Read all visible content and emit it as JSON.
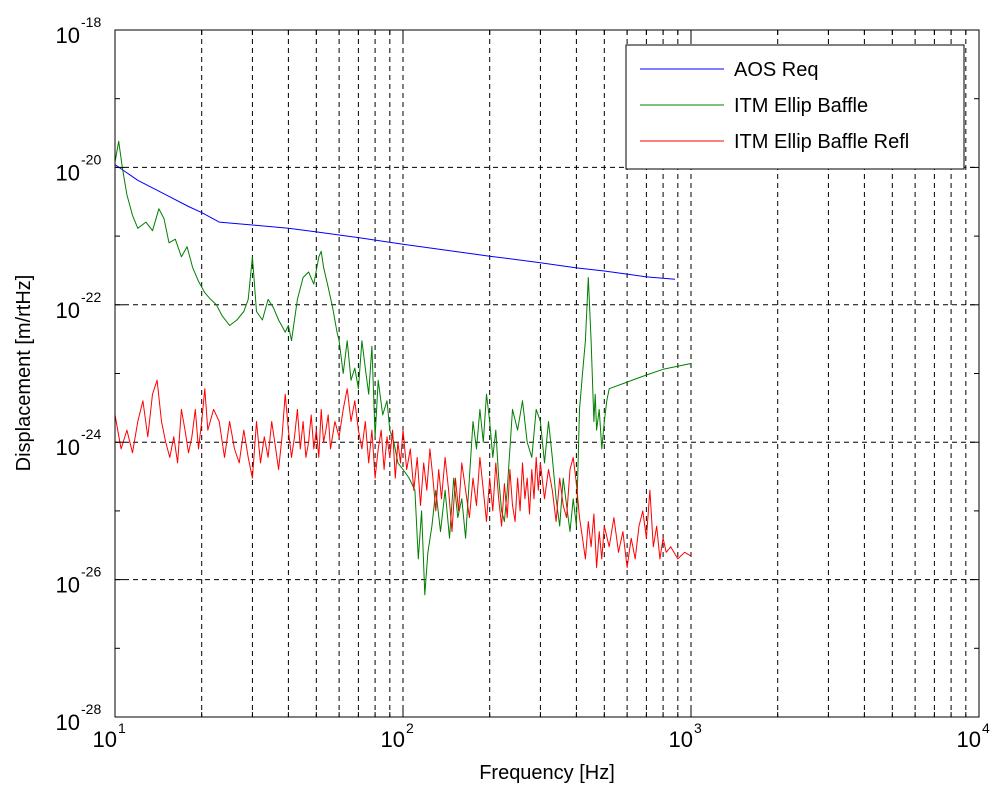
{
  "chart_data": {
    "type": "line",
    "xscale": "log",
    "yscale": "log",
    "xlim": [
      10,
      10000
    ],
    "ylim": [
      1e-28,
      1e-18
    ],
    "grid": true,
    "legend_position": "top-right",
    "xlabel": "Frequency [Hz]",
    "ylabel": "Displacement [m/rtHz]",
    "x_ticks": [
      {
        "base": "10",
        "exp": "1"
      },
      {
        "base": "10",
        "exp": "2"
      },
      {
        "base": "10",
        "exp": "3"
      },
      {
        "base": "10",
        "exp": "4"
      }
    ],
    "y_ticks": [
      {
        "base": "10",
        "exp": "-28"
      },
      {
        "base": "10",
        "exp": "-26"
      },
      {
        "base": "10",
        "exp": "-24"
      },
      {
        "base": "10",
        "exp": "-22"
      },
      {
        "base": "10",
        "exp": "-20"
      },
      {
        "base": "10",
        "exp": "-18"
      }
    ],
    "series": [
      {
        "name": "AOS Req",
        "color": "#0000ff",
        "points": [
          [
            10,
            1.1e-20
          ],
          [
            12,
            6.5e-21
          ],
          [
            15,
            4e-21
          ],
          [
            18,
            2.7e-21
          ],
          [
            20,
            2.2e-21
          ],
          [
            23,
            1.6e-21
          ],
          [
            30,
            1.45e-21
          ],
          [
            40,
            1.3e-21
          ],
          [
            50,
            1.15e-21
          ],
          [
            70,
            9.5e-22
          ],
          [
            100,
            7.6e-22
          ],
          [
            150,
            6e-22
          ],
          [
            200,
            5.1e-22
          ],
          [
            300,
            4.1e-22
          ],
          [
            400,
            3.45e-22
          ],
          [
            500,
            3.1e-22
          ],
          [
            600,
            2.8e-22
          ],
          [
            700,
            2.55e-22
          ],
          [
            880,
            2.35e-22
          ]
        ]
      },
      {
        "name": "ITM Ellip Baffle",
        "color": "#007f00",
        "points": [
          [
            10,
            1.2e-20
          ],
          [
            10.3,
            2.4e-20
          ],
          [
            10.6,
            1e-20
          ],
          [
            11,
            4e-21
          ],
          [
            11.5,
            2e-21
          ],
          [
            12,
            1.3e-21
          ],
          [
            12.8,
            1.6e-21
          ],
          [
            13.5,
            1.2e-21
          ],
          [
            14.2,
            2.5e-21
          ],
          [
            14.8,
            1.8e-21
          ],
          [
            15.4,
            8e-22
          ],
          [
            16.2,
            9e-22
          ],
          [
            17,
            5e-22
          ],
          [
            17.8,
            7e-22
          ],
          [
            18.6,
            3.5e-22
          ],
          [
            19.5,
            2.2e-22
          ],
          [
            20.5,
            1.5e-22
          ],
          [
            21.5,
            1.2e-22
          ],
          [
            22.5,
            1e-22
          ],
          [
            23.5,
            7e-23
          ],
          [
            25,
            5e-23
          ],
          [
            26.5,
            6e-23
          ],
          [
            28,
            8e-23
          ],
          [
            29,
            1.2e-22
          ],
          [
            30,
            5e-22
          ],
          [
            31,
            8e-23
          ],
          [
            32.5,
            6e-23
          ],
          [
            34,
            1.2e-22
          ],
          [
            35.5,
            9e-23
          ],
          [
            37,
            6e-23
          ],
          [
            39,
            4e-23
          ],
          [
            40,
            5e-23
          ],
          [
            41,
            3e-23
          ],
          [
            43,
            1.2e-22
          ],
          [
            45,
            2.5e-22
          ],
          [
            47,
            3e-22
          ],
          [
            49,
            2e-22
          ],
          [
            51,
            5e-22
          ],
          [
            52,
            6e-22
          ],
          [
            53,
            3.5e-22
          ],
          [
            55,
            1.8e-22
          ],
          [
            57,
            9e-23
          ],
          [
            59,
            4e-23
          ],
          [
            60,
            3e-23
          ],
          [
            62,
            1e-23
          ],
          [
            64,
            3e-23
          ],
          [
            66,
            8e-24
          ],
          [
            68,
            1.2e-23
          ],
          [
            70,
            6e-24
          ],
          [
            72,
            3e-23
          ],
          [
            74,
            1.2e-23
          ],
          [
            76,
            5e-24
          ],
          [
            78,
            2.5e-23
          ],
          [
            80,
            1.2e-24
          ],
          [
            82,
            8e-24
          ],
          [
            85,
            2.5e-24
          ],
          [
            88,
            4e-24
          ],
          [
            90,
            1.5e-24
          ],
          [
            93,
            1e-24
          ],
          [
            96,
            5e-25
          ],
          [
            100,
            4e-25
          ],
          [
            105,
            3e-25
          ],
          [
            110,
            2e-25
          ],
          [
            113,
            2e-26
          ],
          [
            116,
            1e-25
          ],
          [
            119,
            6e-27
          ],
          [
            122,
            2.5e-26
          ],
          [
            126,
            6e-26
          ],
          [
            130,
            2e-25
          ],
          [
            135,
            5e-26
          ],
          [
            140,
            2e-25
          ],
          [
            145,
            4e-26
          ],
          [
            150,
            3e-25
          ],
          [
            155,
            8e-26
          ],
          [
            160,
            1.5e-25
          ],
          [
            165,
            4e-26
          ],
          [
            170,
            3e-25
          ],
          [
            175,
            2e-24
          ],
          [
            180,
            8e-25
          ],
          [
            185,
            3e-24
          ],
          [
            190,
            1e-24
          ],
          [
            195,
            5e-24
          ],
          [
            200,
            2e-24
          ],
          [
            205,
            6e-25
          ],
          [
            210,
            1.5e-24
          ],
          [
            215,
            3e-25
          ],
          [
            220,
            1e-25
          ],
          [
            225,
            7e-26
          ],
          [
            230,
            2e-25
          ],
          [
            240,
            3e-24
          ],
          [
            250,
            1.5e-24
          ],
          [
            260,
            4e-24
          ],
          [
            270,
            1e-24
          ],
          [
            280,
            6e-25
          ],
          [
            290,
            3e-24
          ],
          [
            300,
            2e-24
          ],
          [
            310,
            5e-25
          ],
          [
            320,
            2e-24
          ],
          [
            330,
            6e-25
          ],
          [
            340,
            1.5e-25
          ],
          [
            350,
            6e-26
          ],
          [
            360,
            3e-25
          ],
          [
            370,
            1.2e-25
          ],
          [
            380,
            5e-26
          ],
          [
            390,
            1.5e-25
          ],
          [
            400,
            6e-26
          ],
          [
            410,
            3e-24
          ],
          [
            420,
            1e-23
          ],
          [
            430,
            3e-23
          ],
          [
            440,
            2.5e-22
          ],
          [
            450,
            3e-23
          ],
          [
            460,
            2e-24
          ],
          [
            465,
            5e-24
          ],
          [
            470,
            1.5e-24
          ],
          [
            480,
            3e-24
          ],
          [
            490,
            8e-25
          ],
          [
            500,
            2e-24
          ],
          [
            510,
            4e-24
          ],
          [
            520,
            6e-24
          ],
          [
            600,
            7.5e-24
          ],
          [
            700,
            9.5e-24
          ],
          [
            800,
            1.15e-23
          ],
          [
            1000,
            1.4e-23
          ]
        ]
      },
      {
        "name": "ITM Ellip Baffle Refl",
        "color": "#ff0000",
        "points": [
          [
            10,
            2.5e-24
          ],
          [
            10.5,
            8e-25
          ],
          [
            11,
            1.5e-24
          ],
          [
            11.5,
            7e-25
          ],
          [
            12,
            2e-24
          ],
          [
            12.5,
            4e-24
          ],
          [
            13,
            1.2e-24
          ],
          [
            13.5,
            5e-24
          ],
          [
            14,
            8e-24
          ],
          [
            14.5,
            2e-24
          ],
          [
            15,
            1e-24
          ],
          [
            15.5,
            6e-25
          ],
          [
            16,
            1.2e-24
          ],
          [
            16.5,
            5e-25
          ],
          [
            17,
            3e-24
          ],
          [
            17.5,
            1.5e-24
          ],
          [
            18,
            7e-25
          ],
          [
            18.5,
            1.2e-24
          ],
          [
            19,
            3e-24
          ],
          [
            19.5,
            8e-25
          ],
          [
            20,
            2e-24
          ],
          [
            20.5,
            6e-24
          ],
          [
            21,
            1.5e-24
          ],
          [
            22,
            3e-24
          ],
          [
            23,
            2e-24
          ],
          [
            24,
            6e-25
          ],
          [
            25,
            2e-24
          ],
          [
            26,
            8e-25
          ],
          [
            27,
            5e-25
          ],
          [
            28,
            1.5e-24
          ],
          [
            29,
            6e-25
          ],
          [
            30,
            3e-25
          ],
          [
            31,
            2e-24
          ],
          [
            32,
            5e-25
          ],
          [
            33,
            1.2e-24
          ],
          [
            34,
            6e-25
          ],
          [
            35,
            2e-24
          ],
          [
            36,
            9e-25
          ],
          [
            37,
            4e-25
          ],
          [
            38,
            1.2e-24
          ],
          [
            39,
            5e-24
          ],
          [
            40,
            1.5e-24
          ],
          [
            41,
            6e-25
          ],
          [
            42,
            1.2e-24
          ],
          [
            43,
            3e-24
          ],
          [
            44,
            8e-25
          ],
          [
            45,
            2e-24
          ],
          [
            46,
            6e-25
          ],
          [
            47,
            1e-24
          ],
          [
            48,
            2.5e-24
          ],
          [
            49,
            8e-25
          ],
          [
            50,
            1.5e-24
          ],
          [
            51,
            6e-25
          ],
          [
            52,
            3e-24
          ],
          [
            53,
            1e-24
          ],
          [
            54,
            1.5e-24
          ],
          [
            55,
            2.5e-24
          ],
          [
            56,
            8e-25
          ],
          [
            58,
            2e-24
          ],
          [
            60,
            1.2e-24
          ],
          [
            62,
            3e-24
          ],
          [
            64,
            6e-24
          ],
          [
            66,
            2e-24
          ],
          [
            68,
            4e-24
          ],
          [
            70,
            1.5e-24
          ],
          [
            72,
            8e-25
          ],
          [
            74,
            2e-24
          ],
          [
            76,
            5e-25
          ],
          [
            78,
            1.5e-24
          ],
          [
            80,
            3e-25
          ],
          [
            82,
            8e-25
          ],
          [
            84,
            1.5e-24
          ],
          [
            86,
            4e-25
          ],
          [
            88,
            1.2e-24
          ],
          [
            90,
            6e-25
          ],
          [
            92,
            1.5e-24
          ],
          [
            94,
            3e-25
          ],
          [
            96,
            1e-24
          ],
          [
            98,
            5e-25
          ],
          [
            100,
            1.5e-24
          ],
          [
            103,
            4e-25
          ],
          [
            106,
            8e-25
          ],
          [
            109,
            2e-25
          ],
          [
            112,
            6e-25
          ],
          [
            115,
            1.2e-25
          ],
          [
            118,
            5e-25
          ],
          [
            121,
            2e-25
          ],
          [
            124,
            8e-25
          ],
          [
            127,
            3e-25
          ],
          [
            130,
            1e-25
          ],
          [
            133,
            4e-25
          ],
          [
            136,
            1.5e-25
          ],
          [
            140,
            6e-25
          ],
          [
            144,
            2e-25
          ],
          [
            148,
            5e-26
          ],
          [
            152,
            3e-25
          ],
          [
            156,
            1e-25
          ],
          [
            160,
            5e-25
          ],
          [
            165,
            2e-25
          ],
          [
            170,
            8e-26
          ],
          [
            175,
            3e-25
          ],
          [
            180,
            1.2e-25
          ],
          [
            185,
            6e-25
          ],
          [
            190,
            2e-25
          ],
          [
            195,
            7e-26
          ],
          [
            200,
            3e-25
          ],
          [
            205,
            1e-25
          ],
          [
            210,
            5e-25
          ],
          [
            215,
            1.5e-25
          ],
          [
            220,
            6e-26
          ],
          [
            225,
            2.5e-25
          ],
          [
            230,
            8e-26
          ],
          [
            235,
            4e-25
          ],
          [
            240,
            1.2e-25
          ],
          [
            245,
            7e-26
          ],
          [
            250,
            3e-25
          ],
          [
            255,
            1e-25
          ],
          [
            260,
            5e-25
          ],
          [
            265,
            1.5e-25
          ],
          [
            270,
            3e-25
          ],
          [
            275,
            9e-26
          ],
          [
            280,
            4e-25
          ],
          [
            285,
            1.5e-25
          ],
          [
            290,
            6e-25
          ],
          [
            295,
            2e-25
          ],
          [
            300,
            5e-25
          ],
          [
            310,
            1.5e-25
          ],
          [
            320,
            4e-25
          ],
          [
            330,
            2e-25
          ],
          [
            340,
            7e-26
          ],
          [
            350,
            3e-25
          ],
          [
            360,
            1.2e-25
          ],
          [
            370,
            8e-26
          ],
          [
            380,
            4e-25
          ],
          [
            390,
            6e-25
          ],
          [
            400,
            2.5e-25
          ],
          [
            410,
            8e-26
          ],
          [
            420,
            4e-26
          ],
          [
            430,
            2e-26
          ],
          [
            440,
            7e-26
          ],
          [
            450,
            3e-26
          ],
          [
            460,
            9e-26
          ],
          [
            470,
            1.5e-26
          ],
          [
            480,
            5e-26
          ],
          [
            490,
            2e-26
          ],
          [
            500,
            6e-26
          ],
          [
            520,
            3e-26
          ],
          [
            540,
            8e-26
          ],
          [
            560,
            2.5e-26
          ],
          [
            580,
            5e-26
          ],
          [
            600,
            1.5e-26
          ],
          [
            620,
            4e-26
          ],
          [
            640,
            2e-26
          ],
          [
            660,
            6e-26
          ],
          [
            680,
            1e-25
          ],
          [
            700,
            4e-26
          ],
          [
            720,
            2e-25
          ],
          [
            740,
            3e-26
          ],
          [
            760,
            6e-26
          ],
          [
            780,
            2e-26
          ],
          [
            800,
            4e-26
          ],
          [
            820,
            2.5e-26
          ],
          [
            850,
            3e-26
          ],
          [
            900,
            2e-26
          ],
          [
            950,
            2.5e-26
          ],
          [
            1000,
            2.2e-26
          ]
        ]
      }
    ]
  }
}
